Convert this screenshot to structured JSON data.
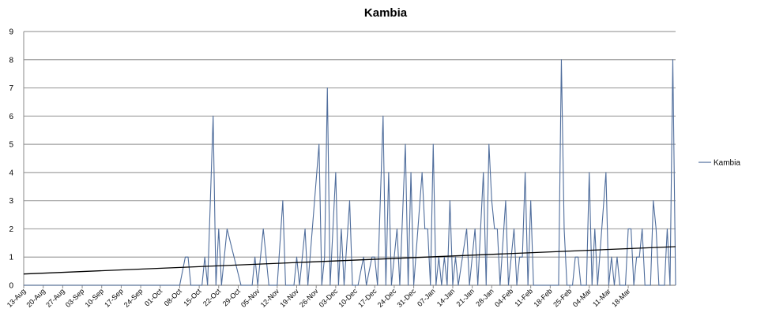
{
  "chart_data": {
    "type": "line",
    "title": "Kambia",
    "xlabel": "",
    "ylabel": "",
    "ylim": [
      0,
      9
    ],
    "yticks": [
      "0",
      "1",
      "2",
      "3",
      "4",
      "5",
      "6",
      "7",
      "8",
      "9"
    ],
    "grid": true,
    "legend_position": "right",
    "x_tick_labels": [
      "13-Aug",
      "20-Aug",
      "27-Aug",
      "03-Sep",
      "10-Sep",
      "17-Sep",
      "24-Sep",
      "01-Oct",
      "08-Oct",
      "15-Oct",
      "22-Oct",
      "29-Oct",
      "05-Nov",
      "12-Nov",
      "19-Nov",
      "26-Nov",
      "03-Dec",
      "10-Dec",
      "17-Dec",
      "24-Dec",
      "31-Dec",
      "07-Jan",
      "14-Jan",
      "21-Jan",
      "28-Jan",
      "04-Feb",
      "11-Feb",
      "18-Feb",
      "25-Feb",
      "04-Mar",
      "11-Mar",
      "18-Mar"
    ],
    "series": [
      {
        "name": "Kambia",
        "color": "#4f6d9c",
        "points": [
          [
            0,
            0
          ],
          [
            14,
            0
          ],
          [
            28,
            0
          ],
          [
            42,
            0
          ],
          [
            56,
            0
          ],
          [
            58,
            1
          ],
          [
            59,
            1
          ],
          [
            60,
            0
          ],
          [
            64,
            0
          ],
          [
            65,
            1
          ],
          [
            66,
            0
          ],
          [
            68,
            6
          ],
          [
            69,
            0
          ],
          [
            70,
            2
          ],
          [
            71,
            0
          ],
          [
            73,
            2
          ],
          [
            78,
            0
          ],
          [
            82,
            0
          ],
          [
            83,
            1
          ],
          [
            84,
            0
          ],
          [
            86,
            2
          ],
          [
            88,
            0
          ],
          [
            91,
            0
          ],
          [
            93,
            3
          ],
          [
            94,
            0
          ],
          [
            97,
            0
          ],
          [
            98,
            1
          ],
          [
            99,
            0
          ],
          [
            101,
            2
          ],
          [
            102,
            0
          ],
          [
            106,
            5
          ],
          [
            107,
            0
          ],
          [
            108,
            1
          ],
          [
            109,
            7
          ],
          [
            110,
            0
          ],
          [
            112,
            4
          ],
          [
            113,
            0
          ],
          [
            114,
            2
          ],
          [
            115,
            0
          ],
          [
            117,
            3
          ],
          [
            118,
            0
          ],
          [
            120,
            0
          ],
          [
            122,
            1
          ],
          [
            123,
            0
          ],
          [
            125,
            1
          ],
          [
            126,
            1
          ],
          [
            127,
            0
          ],
          [
            129,
            6
          ],
          [
            130,
            0
          ],
          [
            131,
            4
          ],
          [
            132,
            0
          ],
          [
            134,
            2
          ],
          [
            135,
            0
          ],
          [
            137,
            5
          ],
          [
            138,
            0
          ],
          [
            139,
            4
          ],
          [
            140,
            0
          ],
          [
            143,
            4
          ],
          [
            144,
            2
          ],
          [
            145,
            2
          ],
          [
            146,
            0
          ],
          [
            147,
            5
          ],
          [
            148,
            0
          ],
          [
            149,
            1
          ],
          [
            150,
            0
          ],
          [
            151,
            1
          ],
          [
            152,
            0
          ],
          [
            153,
            3
          ],
          [
            154,
            0
          ],
          [
            155,
            1
          ],
          [
            156,
            0
          ],
          [
            159,
            2
          ],
          [
            160,
            0
          ],
          [
            162,
            2
          ],
          [
            163,
            0
          ],
          [
            165,
            4
          ],
          [
            166,
            0
          ],
          [
            167,
            5
          ],
          [
            168,
            3
          ],
          [
            169,
            2
          ],
          [
            170,
            2
          ],
          [
            171,
            0
          ],
          [
            173,
            3
          ],
          [
            174,
            0
          ],
          [
            176,
            2
          ],
          [
            177,
            0
          ],
          [
            178,
            1
          ],
          [
            179,
            1
          ],
          [
            180,
            4
          ],
          [
            181,
            0
          ],
          [
            182,
            3
          ],
          [
            183,
            0
          ],
          [
            185,
            0
          ],
          [
            190,
            0
          ],
          [
            192,
            0
          ],
          [
            193,
            8
          ],
          [
            194,
            2
          ],
          [
            195,
            0
          ],
          [
            197,
            0
          ],
          [
            198,
            1
          ],
          [
            199,
            1
          ],
          [
            200,
            0
          ],
          [
            202,
            0
          ],
          [
            203,
            4
          ],
          [
            204,
            0
          ],
          [
            205,
            2
          ],
          [
            206,
            0
          ],
          [
            209,
            4
          ],
          [
            210,
            0
          ],
          [
            211,
            1
          ],
          [
            212,
            0
          ],
          [
            213,
            1
          ],
          [
            214,
            0
          ],
          [
            216,
            0
          ],
          [
            217,
            2
          ],
          [
            218,
            2
          ],
          [
            219,
            0
          ],
          [
            220,
            1
          ],
          [
            221,
            1
          ],
          [
            222,
            2
          ],
          [
            223,
            0
          ],
          [
            225,
            0
          ],
          [
            226,
            3
          ],
          [
            227,
            2
          ],
          [
            228,
            0
          ],
          [
            230,
            0
          ],
          [
            231,
            2
          ],
          [
            232,
            0
          ],
          [
            233,
            8
          ],
          [
            234,
            0
          ]
        ]
      },
      {
        "name": "",
        "type": "trendline",
        "color": "#000000",
        "points": [
          [
            0,
            0.4
          ],
          [
            234,
            1.37
          ]
        ]
      }
    ]
  }
}
